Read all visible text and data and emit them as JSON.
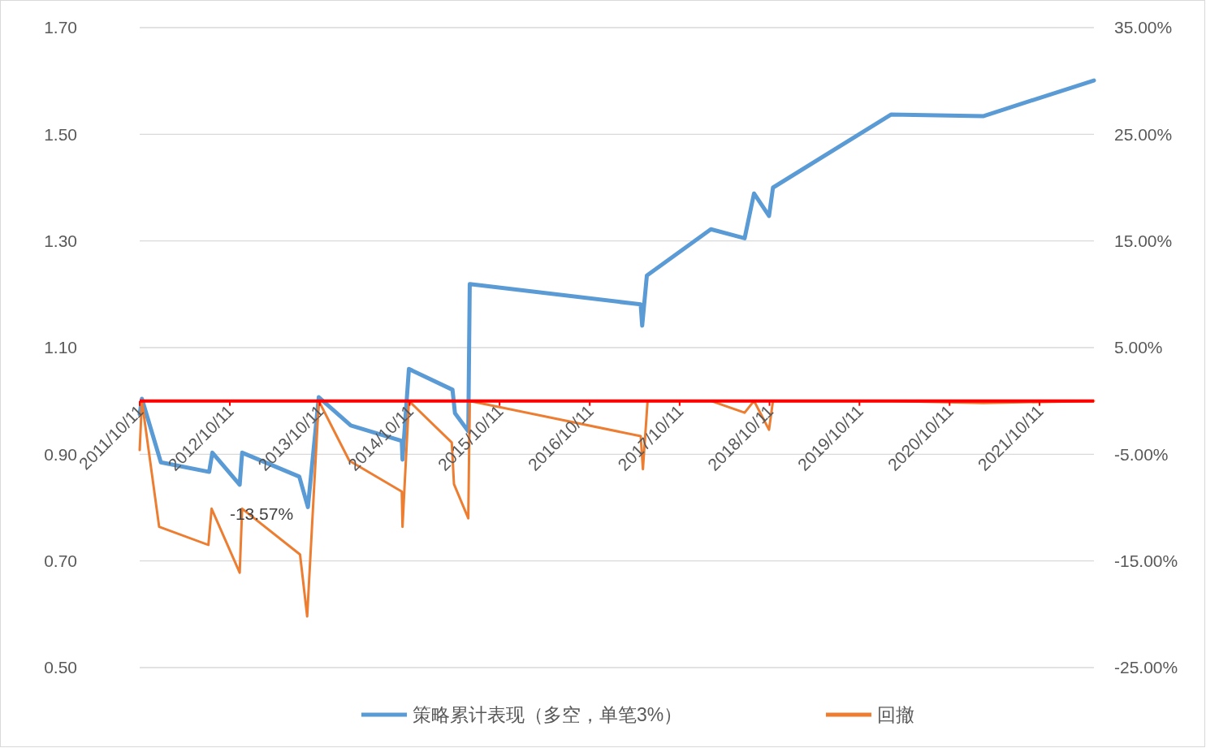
{
  "chart_data": {
    "type": "line",
    "legend": "bottom",
    "grid": "y",
    "line_style": "solid",
    "marker": "none",
    "ylim": [
      0.5,
      1.7
    ],
    "yticks": [
      {
        "value": 0.5,
        "label": "0.50"
      },
      {
        "value": 0.7,
        "label": "0.70"
      },
      {
        "value": 0.9,
        "label": "0.90"
      },
      {
        "value": 1.1,
        "label": "1.10"
      },
      {
        "value": 1.3,
        "label": "1.30"
      },
      {
        "value": 1.5,
        "label": "1.50"
      },
      {
        "value": 1.7,
        "label": "1.70"
      }
    ],
    "y2lim": [
      -25,
      35
    ],
    "y2ticks": [
      {
        "value": -25,
        "label": "-25.00%"
      },
      {
        "value": -15,
        "label": "-15.00%"
      },
      {
        "value": -5,
        "label": "-5.00%"
      },
      {
        "value": 5,
        "label": "5.00%"
      },
      {
        "value": 15,
        "label": "15.00%"
      },
      {
        "value": 25,
        "label": "25.00%"
      },
      {
        "value": 35,
        "label": "35.00%"
      }
    ],
    "xlim": [
      "2011-10-11",
      "2022-05-20"
    ],
    "xticks": [
      {
        "value": "2011-10-11",
        "label": "2011/10/11"
      },
      {
        "value": "2012-10-11",
        "label": "2012/10/11"
      },
      {
        "value": "2013-10-11",
        "label": "2013/10/11"
      },
      {
        "value": "2014-10-11",
        "label": "2014/10/11"
      },
      {
        "value": "2015-10-11",
        "label": "2015/10/11"
      },
      {
        "value": "2016-10-11",
        "label": "2016/10/11"
      },
      {
        "value": "2017-10-11",
        "label": "2017/10/11"
      },
      {
        "value": "2018-10-11",
        "label": "2018/10/11"
      },
      {
        "value": "2019-10-11",
        "label": "2019/10/11"
      },
      {
        "value": "2020-10-11",
        "label": "2020/10/11"
      },
      {
        "value": "2021-10-11",
        "label": "2021/10/11"
      }
    ],
    "annotations": [
      "-13.57%"
    ],
    "series": [
      {
        "name": "策略累计表现（多空，单笔3%）",
        "color": "#5b9bd5",
        "x": [
          "2011-10-11",
          "2011-10-20",
          "2012-01-05",
          "2012-07-19",
          "2012-08-01",
          "2012-11-20",
          "2012-11-30",
          "2013-07-20",
          "2013-08-24",
          "2013-10-07",
          "2014-02-14",
          "2014-09-09",
          "2014-09-12",
          "2014-10-08",
          "2015-04-03",
          "2015-04-13",
          "2015-06-06",
          "2015-06-12",
          "2017-05-06",
          "2017-05-12",
          "2017-05-31",
          "2018-02-15",
          "2018-07-02",
          "2018-08-09",
          "2018-10-09",
          "2018-10-25",
          "2020-02-16",
          "2021-02-24",
          "2022-05-20"
        ],
        "values": [
          0.975,
          1.004,
          0.885,
          0.867,
          0.903,
          0.843,
          0.903,
          0.858,
          0.801,
          1.007,
          0.954,
          0.925,
          0.89,
          1.06,
          1.021,
          0.977,
          0.943,
          1.219,
          1.181,
          1.141,
          1.235,
          1.322,
          1.305,
          1.389,
          1.347,
          1.4,
          1.537,
          1.534,
          1.601
        ]
      },
      {
        "name": "回撤",
        "color": "#ed7d31",
        "axis": "y2",
        "x": [
          "2011-10-11",
          "2011-10-20",
          "2011-12-29",
          "2012-07-16",
          "2012-07-29",
          "2012-11-20",
          "2012-11-30",
          "2013-07-23",
          "2013-08-21",
          "2013-10-07",
          "2014-02-08",
          "2014-09-09",
          "2014-09-12",
          "2014-10-08",
          "2015-03-31",
          "2015-04-09",
          "2015-06-06",
          "2015-06-12",
          "2017-05-06",
          "2017-05-15",
          "2017-06-03",
          "2018-02-15",
          "2018-07-02",
          "2018-08-09",
          "2018-10-09",
          "2018-10-25",
          "2020-02-16",
          "2021-02-24",
          "2022-05-20"
        ],
        "values": [
          -4.6,
          0,
          -11.8,
          -13.5,
          -10.1,
          -16.1,
          -10.1,
          -14.4,
          -20.2,
          0,
          -5.6,
          -8.5,
          -11.8,
          0,
          -3.9,
          -7.8,
          -11,
          0,
          -3.3,
          -6.4,
          0,
          0,
          -1.1,
          0,
          -2.7,
          0,
          0,
          -0.2,
          0
        ]
      }
    ]
  }
}
